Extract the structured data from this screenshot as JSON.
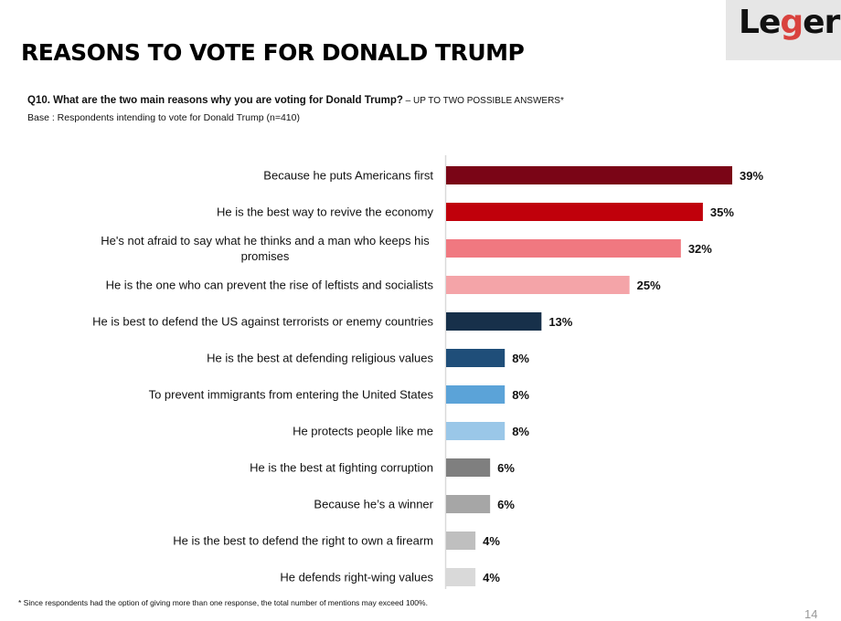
{
  "logo": {
    "text_pre": "Le",
    "text_g": "g",
    "text_post": "er"
  },
  "title": "REASONS TO VOTE FOR DONALD TRUMP",
  "question": {
    "text": "Q10. What are the two main reasons why you are voting for Donald Trump?",
    "note": " – UP TO TWO POSSIBLE ANSWERS*"
  },
  "base": "Base : Respondents intending to vote for Donald Trump (n=410)",
  "footnote": "* Since respondents had the option of giving more than one response, the total number of mentions may exceed 100%.",
  "page_number": "14",
  "chart_data": {
    "type": "bar",
    "orientation": "horizontal",
    "title": "REASONS TO VOTE FOR DONALD TRUMP",
    "xlabel": "",
    "ylabel": "",
    "xlim": [
      0,
      39
    ],
    "grid": false,
    "legend": "none",
    "unit": "%",
    "categories": [
      "Because he puts Americans first",
      "He is the best way to revive the economy",
      "He's not afraid to say what he thinks and a man who keeps his promises",
      "He is the one who can prevent the rise of leftists and socialists",
      "He is best to defend the US against terrorists or enemy countries",
      "He is the best at defending religious values",
      "To prevent immigrants from entering the United States",
      "He protects people like me",
      "He is the best at fighting corruption",
      "Because he’s a winner",
      "He is the best to defend the right to own a firearm",
      "He defends right-wing values"
    ],
    "category_lines": [
      [
        "Because he puts Americans first"
      ],
      [
        "He is the best way to revive the economy"
      ],
      [
        "He's not afraid to say what he thinks and a man who keeps his",
        "promises"
      ],
      [
        "He is the one who can prevent the rise of leftists and socialists"
      ],
      [
        "He is best to defend the US against terrorists or enemy countries"
      ],
      [
        "He is the best at defending religious values"
      ],
      [
        "To prevent immigrants from entering the United States"
      ],
      [
        "He protects people like me"
      ],
      [
        "He is the best at fighting corruption"
      ],
      [
        "Because he’s a winner"
      ],
      [
        "He is the best to defend the right to own a firearm"
      ],
      [
        "He defends right-wing values"
      ]
    ],
    "values": [
      39,
      35,
      32,
      25,
      13,
      8,
      8,
      8,
      6,
      6,
      4,
      4
    ],
    "labels": [
      "39%",
      "35%",
      "32%",
      "25%",
      "13%",
      "8%",
      "8%",
      "8%",
      "6%",
      "6%",
      "4%",
      "4%"
    ],
    "colors": [
      "#7a0516",
      "#c0000b",
      "#f07880",
      "#f4a4a8",
      "#17304a",
      "#1f4e79",
      "#5ba3d8",
      "#9ac7e8",
      "#7f7f7f",
      "#a6a6a6",
      "#bfbfbf",
      "#d9d9d9"
    ],
    "axis_color": "#d9d9d9"
  }
}
